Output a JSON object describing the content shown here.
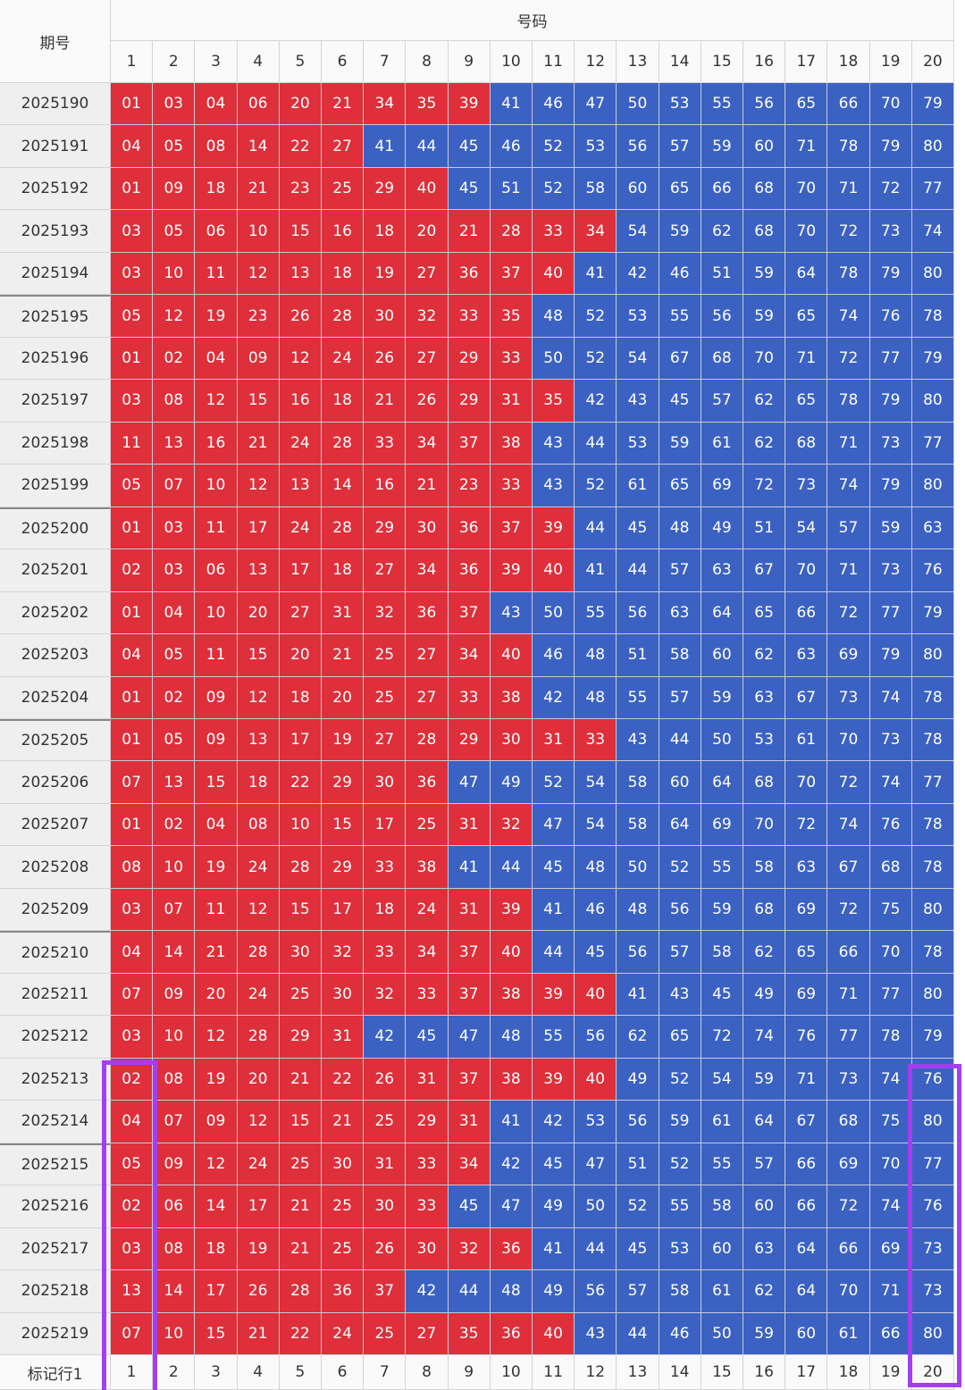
{
  "table": {
    "period_header": "期号",
    "numbers_header": "号码",
    "columns": [
      1,
      2,
      3,
      4,
      5,
      6,
      7,
      8,
      9,
      10,
      11,
      12,
      13,
      14,
      15,
      16,
      17,
      18,
      19,
      20
    ],
    "settings": {
      "low_color": "#de2f3a",
      "high_color": "#3b62c2",
      "low_max": 40
    },
    "rows": [
      {
        "period": "2025190",
        "numbers": [
          "01",
          "03",
          "04",
          "06",
          "20",
          "21",
          "34",
          "35",
          "39",
          "41",
          "46",
          "47",
          "50",
          "53",
          "55",
          "56",
          "65",
          "66",
          "70",
          "79"
        ]
      },
      {
        "period": "2025191",
        "numbers": [
          "04",
          "05",
          "08",
          "14",
          "22",
          "27",
          "41",
          "44",
          "45",
          "46",
          "52",
          "53",
          "56",
          "57",
          "59",
          "60",
          "71",
          "78",
          "79",
          "80"
        ]
      },
      {
        "period": "2025192",
        "numbers": [
          "01",
          "09",
          "18",
          "21",
          "23",
          "25",
          "29",
          "40",
          "45",
          "51",
          "52",
          "58",
          "60",
          "65",
          "66",
          "68",
          "70",
          "71",
          "72",
          "77"
        ]
      },
      {
        "period": "2025193",
        "numbers": [
          "03",
          "05",
          "06",
          "10",
          "15",
          "16",
          "18",
          "20",
          "21",
          "28",
          "33",
          "34",
          "54",
          "59",
          "62",
          "68",
          "70",
          "72",
          "73",
          "74"
        ]
      },
      {
        "period": "2025194",
        "numbers": [
          "03",
          "10",
          "11",
          "12",
          "13",
          "18",
          "19",
          "27",
          "36",
          "37",
          "40",
          "41",
          "42",
          "46",
          "51",
          "59",
          "64",
          "78",
          "79",
          "80"
        ]
      },
      {
        "period": "2025195",
        "numbers": [
          "05",
          "12",
          "19",
          "23",
          "26",
          "28",
          "30",
          "32",
          "33",
          "35",
          "48",
          "52",
          "53",
          "55",
          "56",
          "59",
          "65",
          "74",
          "76",
          "78"
        ]
      },
      {
        "period": "2025196",
        "numbers": [
          "01",
          "02",
          "04",
          "09",
          "12",
          "24",
          "26",
          "27",
          "29",
          "33",
          "50",
          "52",
          "54",
          "67",
          "68",
          "70",
          "71",
          "72",
          "77",
          "79"
        ]
      },
      {
        "period": "2025197",
        "numbers": [
          "03",
          "08",
          "12",
          "15",
          "16",
          "18",
          "21",
          "26",
          "29",
          "31",
          "35",
          "42",
          "43",
          "45",
          "57",
          "62",
          "65",
          "78",
          "79",
          "80"
        ]
      },
      {
        "period": "2025198",
        "numbers": [
          "11",
          "13",
          "16",
          "21",
          "24",
          "28",
          "33",
          "34",
          "37",
          "38",
          "43",
          "44",
          "53",
          "59",
          "61",
          "62",
          "68",
          "71",
          "73",
          "77"
        ]
      },
      {
        "period": "2025199",
        "numbers": [
          "05",
          "07",
          "10",
          "12",
          "13",
          "14",
          "16",
          "21",
          "23",
          "33",
          "43",
          "52",
          "61",
          "65",
          "69",
          "72",
          "73",
          "74",
          "79",
          "80"
        ]
      },
      {
        "period": "2025200",
        "numbers": [
          "01",
          "03",
          "11",
          "17",
          "24",
          "28",
          "29",
          "30",
          "36",
          "37",
          "39",
          "44",
          "45",
          "48",
          "49",
          "51",
          "54",
          "57",
          "59",
          "63"
        ]
      },
      {
        "period": "2025201",
        "numbers": [
          "02",
          "03",
          "06",
          "13",
          "17",
          "18",
          "27",
          "34",
          "36",
          "39",
          "40",
          "41",
          "44",
          "57",
          "63",
          "67",
          "70",
          "71",
          "73",
          "76"
        ]
      },
      {
        "period": "2025202",
        "numbers": [
          "01",
          "04",
          "10",
          "20",
          "27",
          "31",
          "32",
          "36",
          "37",
          "43",
          "50",
          "55",
          "56",
          "63",
          "64",
          "65",
          "66",
          "72",
          "77",
          "79"
        ]
      },
      {
        "period": "2025203",
        "numbers": [
          "04",
          "05",
          "11",
          "15",
          "20",
          "21",
          "25",
          "27",
          "34",
          "40",
          "46",
          "48",
          "51",
          "58",
          "60",
          "62",
          "63",
          "69",
          "79",
          "80"
        ]
      },
      {
        "period": "2025204",
        "numbers": [
          "01",
          "02",
          "09",
          "12",
          "18",
          "20",
          "25",
          "27",
          "33",
          "38",
          "42",
          "48",
          "55",
          "57",
          "59",
          "63",
          "67",
          "73",
          "74",
          "78"
        ]
      },
      {
        "period": "2025205",
        "numbers": [
          "01",
          "05",
          "09",
          "13",
          "17",
          "19",
          "27",
          "28",
          "29",
          "30",
          "31",
          "33",
          "43",
          "44",
          "50",
          "53",
          "61",
          "70",
          "73",
          "78"
        ]
      },
      {
        "period": "2025206",
        "numbers": [
          "07",
          "13",
          "15",
          "18",
          "22",
          "29",
          "30",
          "36",
          "47",
          "49",
          "52",
          "54",
          "58",
          "60",
          "64",
          "68",
          "70",
          "72",
          "74",
          "77"
        ]
      },
      {
        "period": "2025207",
        "numbers": [
          "01",
          "02",
          "04",
          "08",
          "10",
          "15",
          "17",
          "25",
          "31",
          "32",
          "47",
          "54",
          "58",
          "64",
          "69",
          "70",
          "72",
          "74",
          "76",
          "78"
        ]
      },
      {
        "period": "2025208",
        "numbers": [
          "08",
          "10",
          "19",
          "24",
          "28",
          "29",
          "33",
          "38",
          "41",
          "44",
          "45",
          "48",
          "50",
          "52",
          "55",
          "58",
          "63",
          "67",
          "68",
          "78"
        ]
      },
      {
        "period": "2025209",
        "numbers": [
          "03",
          "07",
          "11",
          "12",
          "15",
          "17",
          "18",
          "24",
          "31",
          "39",
          "41",
          "46",
          "48",
          "56",
          "59",
          "68",
          "69",
          "72",
          "75",
          "80"
        ]
      },
      {
        "period": "2025210",
        "numbers": [
          "04",
          "14",
          "21",
          "28",
          "30",
          "32",
          "33",
          "34",
          "37",
          "40",
          "44",
          "45",
          "56",
          "57",
          "58",
          "62",
          "65",
          "66",
          "70",
          "78"
        ]
      },
      {
        "period": "2025211",
        "numbers": [
          "07",
          "09",
          "20",
          "24",
          "25",
          "30",
          "32",
          "33",
          "37",
          "38",
          "39",
          "40",
          "41",
          "43",
          "45",
          "49",
          "69",
          "71",
          "77",
          "80"
        ]
      },
      {
        "period": "2025212",
        "numbers": [
          "03",
          "10",
          "12",
          "28",
          "29",
          "31",
          "42",
          "45",
          "47",
          "48",
          "55",
          "56",
          "62",
          "65",
          "72",
          "74",
          "76",
          "77",
          "78",
          "79"
        ]
      },
      {
        "period": "2025213",
        "numbers": [
          "02",
          "08",
          "19",
          "20",
          "21",
          "22",
          "26",
          "31",
          "37",
          "38",
          "39",
          "40",
          "49",
          "52",
          "54",
          "59",
          "71",
          "73",
          "74",
          "76"
        ]
      },
      {
        "period": "2025214",
        "numbers": [
          "04",
          "07",
          "09",
          "12",
          "15",
          "21",
          "25",
          "29",
          "31",
          "41",
          "42",
          "53",
          "56",
          "59",
          "61",
          "64",
          "67",
          "68",
          "75",
          "80"
        ]
      },
      {
        "period": "2025215",
        "numbers": [
          "05",
          "09",
          "12",
          "24",
          "25",
          "30",
          "31",
          "33",
          "34",
          "42",
          "45",
          "47",
          "51",
          "52",
          "55",
          "57",
          "66",
          "69",
          "70",
          "77"
        ]
      },
      {
        "period": "2025216",
        "numbers": [
          "02",
          "06",
          "14",
          "17",
          "21",
          "25",
          "30",
          "33",
          "45",
          "47",
          "49",
          "50",
          "52",
          "55",
          "58",
          "60",
          "66",
          "72",
          "74",
          "76"
        ]
      },
      {
        "period": "2025217",
        "numbers": [
          "03",
          "08",
          "18",
          "19",
          "21",
          "25",
          "26",
          "30",
          "32",
          "36",
          "41",
          "44",
          "45",
          "53",
          "60",
          "63",
          "64",
          "66",
          "69",
          "73"
        ]
      },
      {
        "period": "2025218",
        "numbers": [
          "13",
          "14",
          "17",
          "26",
          "28",
          "36",
          "37",
          "42",
          "44",
          "48",
          "49",
          "56",
          "57",
          "58",
          "61",
          "62",
          "64",
          "70",
          "71",
          "73"
        ]
      },
      {
        "period": "2025219",
        "numbers": [
          "07",
          "10",
          "15",
          "21",
          "22",
          "24",
          "25",
          "27",
          "35",
          "36",
          "40",
          "43",
          "44",
          "46",
          "50",
          "59",
          "60",
          "61",
          "66",
          "80"
        ]
      }
    ],
    "footer": {
      "label": "标记行1",
      "values": [
        1,
        2,
        3,
        4,
        5,
        6,
        7,
        8,
        9,
        10,
        11,
        12,
        13,
        14,
        15,
        16,
        17,
        18,
        19,
        20
      ]
    }
  }
}
